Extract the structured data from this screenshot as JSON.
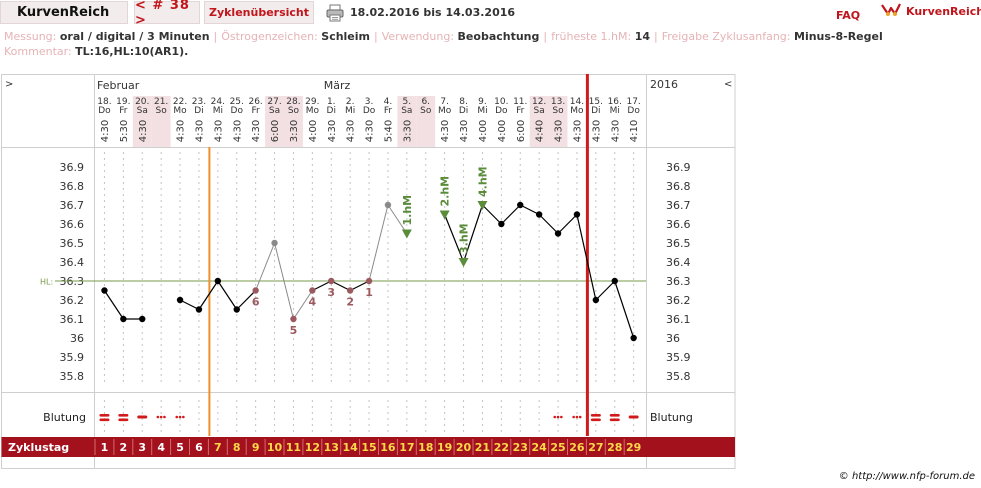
{
  "topbar": {
    "brand": "KurvenReich",
    "cycle_nav": "< # 38 >",
    "cycle_overview": "Zyklenübersicht",
    "date_range": "18.02.2016 bis 14.03.2016",
    "faq": "FAQ",
    "logo_text": "KurvenReich",
    "print_icon": "printer-icon",
    "logo_icon": "kurvenreich-logo-icon"
  },
  "info": {
    "line1": [
      {
        "label": "Messung:",
        "value": "oral / digital / 3 Minuten"
      },
      {
        "label": "Östrogenzeichen:",
        "value": "Schleim"
      },
      {
        "label": "Verwendung:",
        "value": "Beobachtung"
      },
      {
        "label": "früheste 1.hM:",
        "value": "14"
      },
      {
        "label": "Freigabe Zyklusanfang:",
        "value": "Minus-8-Regel"
      }
    ],
    "line2": [
      {
        "label": "Kommentar:",
        "value": "TL:16,HL:10(AR1)."
      }
    ]
  },
  "colors": {
    "accent": "#c0151b",
    "dayband": "#a3111d",
    "dayband_text": "#ffd84a",
    "weekend_bg": "#f3e0e3",
    "line_gray": "#8a8a8a",
    "hl": "#7a9a4a",
    "orange": "#f0902a",
    "red_line": "#d21a1a",
    "pink_pt": "#9b5a60",
    "green": "#5a8c3a"
  },
  "chart_data": {
    "type": "line",
    "header_left": ">",
    "header_right_year": "2016",
    "header_right_arrow": "<",
    "month_labels": [
      {
        "label": "Februar",
        "day_index": 0
      },
      {
        "label": "März",
        "day_index": 12
      }
    ],
    "days": [
      {
        "date": "18.",
        "wd": "Do",
        "time": "4:30",
        "weekend": false
      },
      {
        "date": "19.",
        "wd": "Fr",
        "time": "5:30",
        "weekend": false
      },
      {
        "date": "20.",
        "wd": "Sa",
        "time": "4:30",
        "weekend": true
      },
      {
        "date": "21.",
        "wd": "So",
        "time": "",
        "weekend": true
      },
      {
        "date": "22.",
        "wd": "Mo",
        "time": "4:30",
        "weekend": false
      },
      {
        "date": "23.",
        "wd": "Di",
        "time": "4:30",
        "weekend": false
      },
      {
        "date": "24.",
        "wd": "Mi",
        "time": "4:30",
        "weekend": false
      },
      {
        "date": "25.",
        "wd": "Do",
        "time": "4:30",
        "weekend": false
      },
      {
        "date": "26.",
        "wd": "Fr",
        "time": "4:30",
        "weekend": false
      },
      {
        "date": "27.",
        "wd": "Sa",
        "time": "6:00",
        "weekend": true
      },
      {
        "date": "28.",
        "wd": "So",
        "time": "3:30",
        "weekend": true
      },
      {
        "date": "29.",
        "wd": "Mo",
        "time": "4:00",
        "weekend": false
      },
      {
        "date": "1.",
        "wd": "Di",
        "time": "4:30",
        "weekend": false
      },
      {
        "date": "2.",
        "wd": "Mi",
        "time": "4:30",
        "weekend": false
      },
      {
        "date": "3.",
        "wd": "Do",
        "time": "4:30",
        "weekend": false
      },
      {
        "date": "4.",
        "wd": "Fr",
        "time": "5:40",
        "weekend": false
      },
      {
        "date": "5.",
        "wd": "Sa",
        "time": "3:30",
        "weekend": true
      },
      {
        "date": "6.",
        "wd": "So",
        "time": "",
        "weekend": true
      },
      {
        "date": "7.",
        "wd": "Mo",
        "time": "4:30",
        "weekend": false
      },
      {
        "date": "8.",
        "wd": "Di",
        "time": "4:30",
        "weekend": false
      },
      {
        "date": "9.",
        "wd": "Mi",
        "time": "4:00",
        "weekend": false
      },
      {
        "date": "10.",
        "wd": "Do",
        "time": "4:00",
        "weekend": false
      },
      {
        "date": "11.",
        "wd": "Fr",
        "time": "6:00",
        "weekend": false
      },
      {
        "date": "12.",
        "wd": "Sa",
        "time": "4:40",
        "weekend": true
      },
      {
        "date": "13.",
        "wd": "So",
        "time": "4:30",
        "weekend": true
      },
      {
        "date": "14.",
        "wd": "Mo",
        "time": "4:30",
        "weekend": false
      },
      {
        "date": "15.",
        "wd": "Di",
        "time": "4:30",
        "weekend": false
      },
      {
        "date": "16.",
        "wd": "Mi",
        "time": "4:30",
        "weekend": false
      },
      {
        "date": "17.",
        "wd": "Do",
        "time": "4:10",
        "weekend": false
      }
    ],
    "y_ticks": [
      "36.9",
      "36.8",
      "36.7",
      "36.6",
      "36.5",
      "36.4",
      "36.3",
      "36.2",
      "36.1",
      "36",
      "35.9",
      "35.8"
    ],
    "ylim": [
      35.75,
      36.95
    ],
    "hl_value": 36.3,
    "hl_label": "HL:",
    "temps": [
      36.25,
      36.1,
      36.1,
      null,
      36.2,
      36.15,
      36.3,
      36.15,
      36.25,
      36.5,
      36.1,
      36.25,
      36.3,
      36.25,
      36.3,
      36.7,
      36.55,
      null,
      36.65,
      36.4,
      36.7,
      36.6,
      36.7,
      36.65,
      36.55,
      36.65,
      36.2,
      36.3,
      36.0
    ],
    "point_styles": [
      "n",
      "n",
      "n",
      null,
      "n",
      "n",
      "n",
      "n",
      "p",
      "g",
      "p",
      "p",
      "p",
      "p",
      "p",
      "g",
      "g",
      null,
      "g",
      "g",
      "g",
      "n",
      "n",
      "n",
      "n",
      "n",
      "n",
      "n",
      "n"
    ],
    "low_numbers": [
      {
        "day_index": 8,
        "label": "6"
      },
      {
        "day_index": 10,
        "label": "5"
      },
      {
        "day_index": 11,
        "label": "4"
      },
      {
        "day_index": 12,
        "label": "3"
      },
      {
        "day_index": 13,
        "label": "2"
      },
      {
        "day_index": 14,
        "label": "1"
      }
    ],
    "high_markers": [
      {
        "day_index": 16,
        "label": "1.hM"
      },
      {
        "day_index": 18,
        "label": "2.hM"
      },
      {
        "day_index": 19,
        "label": "3.hM"
      },
      {
        "day_index": 20,
        "label": "4.hM"
      }
    ],
    "orange_line_after_day": 5,
    "red_line_after_day": 25,
    "bleeding_label": "Blutung",
    "bleeding": [
      "heavy",
      "heavy",
      "medium",
      "light",
      "light",
      null,
      null,
      null,
      null,
      null,
      null,
      null,
      null,
      null,
      null,
      null,
      null,
      null,
      null,
      null,
      null,
      null,
      null,
      null,
      "light",
      "light",
      "heavy",
      "heavy",
      "medium"
    ],
    "cycle_label": "Zyklustag",
    "cycle_days": [
      "1",
      "2",
      "3",
      "4",
      "5",
      "6",
      "7",
      "8",
      "9",
      "10",
      "11",
      "12",
      "13",
      "14",
      "15",
      "16",
      "17",
      "18",
      "19",
      "20",
      "21",
      "22",
      "23",
      "24",
      "25",
      "26",
      "27",
      "28",
      "29"
    ],
    "cycle_gold_from": 6
  },
  "footer": {
    "copyright": "© http://www.nfp-forum.de"
  }
}
